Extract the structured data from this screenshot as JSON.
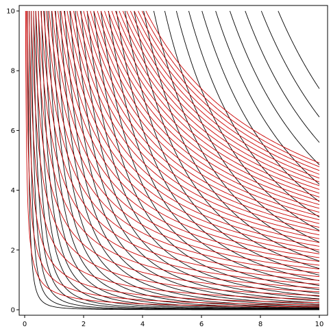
{
  "chart_data": {
    "type": "line",
    "title": "",
    "xlabel": "",
    "ylabel": "",
    "xlim": [
      0,
      10
    ],
    "ylim": [
      0,
      10
    ],
    "x_ticks": [
      "0",
      "2",
      "4",
      "6",
      "8",
      "10"
    ],
    "y_ticks": [
      "0",
      "2",
      "4",
      "6",
      "8",
      "10"
    ],
    "grid": false,
    "legend": "none",
    "series": [
      {
        "family": "black-level-curves",
        "color": "#000000",
        "curve_form": "y = c / x^2",
        "levels": [
          0.1,
          0.25,
          0.5,
          0.9,
          1.4,
          2.2,
          3.2,
          4.5,
          6.2,
          8.4,
          11,
          14.5,
          18.5,
          23.5,
          29.5,
          36.5,
          45,
          55,
          67,
          81,
          97,
          116,
          138,
          163,
          192,
          226,
          265,
          310,
          362,
          420,
          485,
          560,
          645,
          740
        ]
      },
      {
        "family": "red-level-curves",
        "color": "#cc0000",
        "curve_form": "y = c / x^0.8",
        "levels": [
          0.6,
          1.0,
          1.5,
          2.2,
          3.0,
          3.8,
          4.6,
          5.4,
          6.2,
          7.0,
          7.8,
          8.6,
          9.4,
          10.2,
          11.0,
          11.8,
          12.6,
          13.4,
          14.2,
          15.0,
          15.8,
          16.6,
          17.4,
          18.2,
          19.0,
          19.8,
          20.6,
          21.4,
          22.2,
          23.0,
          23.8,
          24.6,
          25.4,
          26.2,
          27.0,
          27.8,
          28.6,
          29.4,
          30.2,
          31.0
        ]
      }
    ]
  }
}
